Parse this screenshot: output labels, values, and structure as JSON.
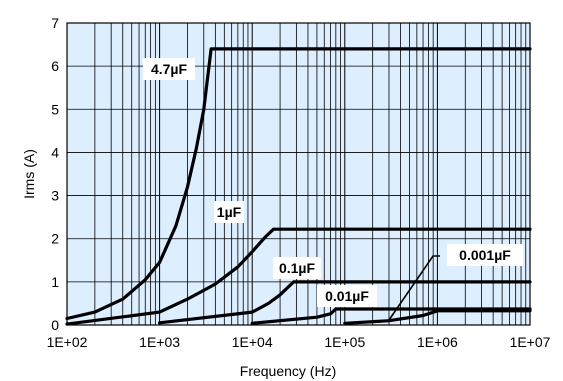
{
  "chart_data": {
    "type": "line",
    "title": "",
    "xlabel": "Frequency (Hz)",
    "ylabel": "Irms (A)",
    "x_scale": "log",
    "xlim": [
      100,
      10000000
    ],
    "ylim": [
      0,
      7
    ],
    "grid": true,
    "plot_background": "#ddeeff",
    "line_color": "#000000",
    "x_tick_values": [
      100,
      1000,
      10000,
      100000,
      1000000,
      10000000
    ],
    "x_tick_labels": [
      "1E+02",
      "1E+03",
      "1E+04",
      "1E+05",
      "1E+06",
      "1E+07"
    ],
    "y_tick_values": [
      0,
      1,
      2,
      3,
      4,
      5,
      6,
      7
    ],
    "y_tick_labels": [
      "0",
      "1",
      "2",
      "3",
      "4",
      "5",
      "6",
      "7"
    ],
    "series": [
      {
        "name": "4.7µF",
        "x": [
          100,
          200,
          400,
          700,
          1000,
          1500,
          2000,
          2500,
          3000,
          3600,
          10000000
        ],
        "y": [
          0.15,
          0.3,
          0.6,
          1.05,
          1.45,
          2.3,
          3.2,
          4.1,
          5.0,
          6.4,
          6.4
        ]
      },
      {
        "name": "1µF",
        "x": [
          100,
          1000,
          2000,
          4000,
          7000,
          10000,
          14000,
          17000,
          10000000
        ],
        "y": [
          0.02,
          0.3,
          0.6,
          0.95,
          1.35,
          1.7,
          2.05,
          2.22,
          2.22
        ]
      },
      {
        "name": "0.1µF",
        "x": [
          1000,
          10000,
          15000,
          20000,
          28000,
          10000000
        ],
        "y": [
          0.05,
          0.3,
          0.5,
          0.7,
          1.0,
          1.0
        ]
      },
      {
        "name": "0.01µF",
        "x": [
          10000,
          50000,
          70000,
          80000,
          10000000
        ],
        "y": [
          0.04,
          0.18,
          0.26,
          0.37,
          0.37
        ]
      },
      {
        "name": "0.001µF",
        "x": [
          100000,
          300000,
          700000,
          1000000,
          10000000
        ],
        "y": [
          0.04,
          0.1,
          0.22,
          0.33,
          0.33
        ]
      }
    ]
  }
}
